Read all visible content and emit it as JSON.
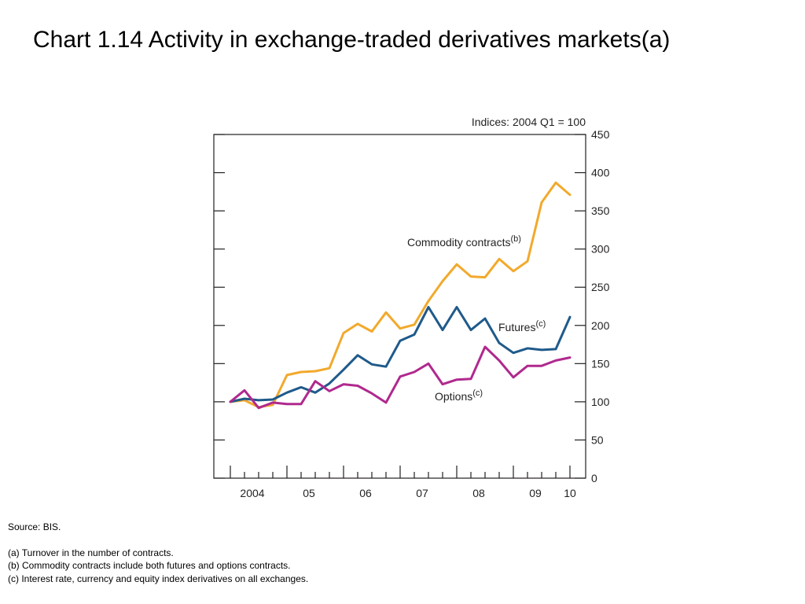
{
  "title": "Chart 1.14  Activity in exchange-traded derivatives markets(a)",
  "chart_data": {
    "type": "line",
    "unit_label": "Indices:  2004 Q1 = 100",
    "y_ticks": [
      0,
      50,
      100,
      150,
      200,
      250,
      300,
      350,
      400,
      450
    ],
    "ylim": [
      0,
      450
    ],
    "grid": false,
    "x_tick_labels": [
      "2004",
      "05",
      "06",
      "07",
      "08",
      "09",
      "10"
    ],
    "x": [
      "2004 Q1",
      "2004 Q2",
      "2004 Q3",
      "2004 Q4",
      "2005 Q1",
      "2005 Q2",
      "2005 Q3",
      "2005 Q4",
      "2006 Q1",
      "2006 Q2",
      "2006 Q3",
      "2006 Q4",
      "2007 Q1",
      "2007 Q2",
      "2007 Q3",
      "2007 Q4",
      "2008 Q1",
      "2008 Q2",
      "2008 Q3",
      "2008 Q4",
      "2009 Q1",
      "2009 Q2",
      "2009 Q3",
      "2009 Q4",
      "2010 Q1"
    ],
    "series": [
      {
        "name": "Commodity contracts",
        "label_sup": "(b)",
        "color": "#f2a92c",
        "values": [
          100,
          102,
          93,
          96,
          135,
          139,
          140,
          144,
          190,
          202,
          192,
          217,
          196,
          201,
          232,
          258,
          280,
          264,
          263,
          287,
          271,
          284,
          361,
          387,
          371
        ]
      },
      {
        "name": "Futures",
        "label_sup": "(c)",
        "color": "#1f5a8a",
        "values": [
          100,
          104,
          102,
          103,
          112,
          119,
          112,
          124,
          142,
          161,
          149,
          146,
          180,
          188,
          224,
          194,
          224,
          194,
          209,
          177,
          164,
          170,
          168,
          169,
          211
        ]
      },
      {
        "name": "Options",
        "label_sup": "(c)",
        "color": "#b0298e",
        "values": [
          100,
          115,
          92,
          99,
          97,
          97,
          127,
          114,
          123,
          121,
          111,
          99,
          133,
          139,
          150,
          123,
          129,
          130,
          172,
          154,
          132,
          147,
          147,
          154,
          158
        ]
      }
    ]
  },
  "notes": {
    "source": "Source:  BIS.",
    "a": "(a)  Turnover in the number of contracts.",
    "b": "(b)  Commodity contracts include both futures and options contracts.",
    "c": "(c)  Interest rate, currency and equity index derivatives on all exchanges."
  }
}
